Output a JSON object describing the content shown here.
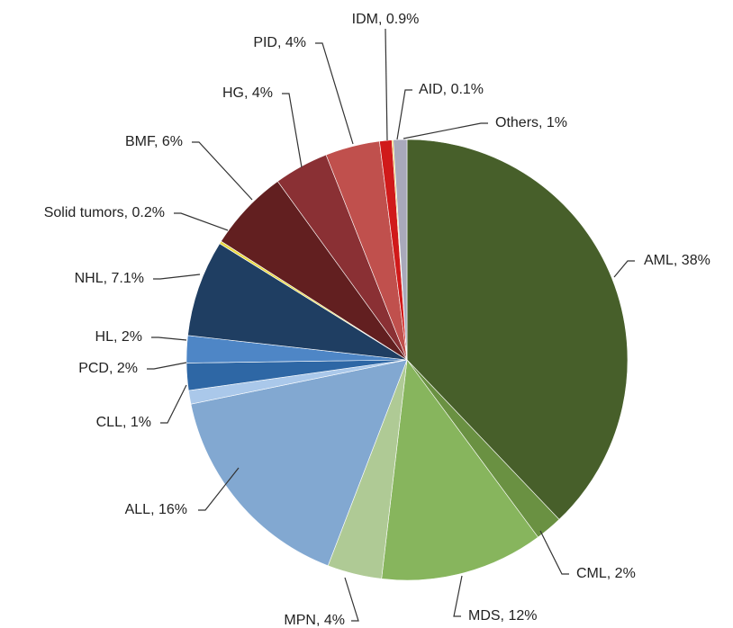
{
  "chart_data": {
    "type": "pie",
    "values": [
      38,
      2,
      12,
      4,
      16,
      1,
      2,
      2,
      7.1,
      0.2,
      6,
      4,
      4,
      0.9,
      0.1,
      1
    ],
    "value_labels": [
      "AML, 38%",
      "CML, 2%",
      "MDS, 12%",
      "MPN, 4%",
      "ALL, 16%",
      "CLL, 1%",
      "PCD, 2%",
      "HL, 2%",
      "NHL, 7.1%",
      "Solid tumors, 0.2%",
      "BMF, 6%",
      "HG, 4%",
      "PID, 4%",
      "IDM, 0.9%",
      "AID, 0.1%",
      "Others, 1%"
    ],
    "colors": [
      "#475f2a",
      "#6a9142",
      "#87b55d",
      "#afca95",
      "#82a8d1",
      "#aac8ea",
      "#2e67a5",
      "#4e86c6",
      "#1f3e62",
      "#e8d83f",
      "#621f20",
      "#8a3034",
      "#c0504d",
      "#d01a1a",
      "#e6c23a",
      "#a9a9bb"
    ]
  }
}
